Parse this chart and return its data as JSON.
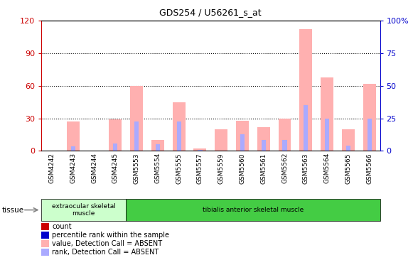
{
  "title": "GDS254 / U56261_s_at",
  "samples": [
    "GSM4242",
    "GSM4243",
    "GSM4244",
    "GSM4245",
    "GSM5553",
    "GSM5554",
    "GSM5555",
    "GSM5557",
    "GSM5559",
    "GSM5560",
    "GSM5561",
    "GSM5562",
    "GSM5563",
    "GSM5564",
    "GSM5565",
    "GSM5566"
  ],
  "value_absent": [
    0,
    27,
    0,
    29,
    60,
    10,
    45,
    2,
    20,
    28,
    22,
    30,
    112,
    68,
    20,
    62
  ],
  "rank_absent": [
    0,
    4,
    0,
    7,
    27,
    6,
    27,
    1,
    0,
    15,
    10,
    10,
    42,
    30,
    5,
    30
  ],
  "ylim_left": [
    0,
    120
  ],
  "ylim_right": [
    0,
    100
  ],
  "yticks_left": [
    0,
    30,
    60,
    90,
    120
  ],
  "yticks_right": [
    0,
    25,
    50,
    75,
    100
  ],
  "ytick_labels_right": [
    "0",
    "25",
    "50",
    "75",
    "100%"
  ],
  "color_value_absent": "#FFB0B0",
  "color_rank_absent": "#AAAAFF",
  "color_count": "#CC0000",
  "color_percentile": "#0000CC",
  "tissue_groups": [
    {
      "label": "extraocular skeletal\nmuscle",
      "start": 0,
      "end": 4,
      "color": "#CCFFCC"
    },
    {
      "label": "tibialis anterior skeletal muscle",
      "start": 4,
      "end": 16,
      "color": "#44CC44"
    }
  ],
  "tissue_label": "tissue",
  "bg_color": "#FFFFFF",
  "axes_label_color_left": "#CC0000",
  "axes_label_color_right": "#0000CC",
  "legend_items": [
    {
      "color": "#CC0000",
      "label": "count"
    },
    {
      "color": "#0000CC",
      "label": "percentile rank within the sample"
    },
    {
      "color": "#FFB0B0",
      "label": "value, Detection Call = ABSENT"
    },
    {
      "color": "#AAAAFF",
      "label": "rank, Detection Call = ABSENT"
    }
  ]
}
